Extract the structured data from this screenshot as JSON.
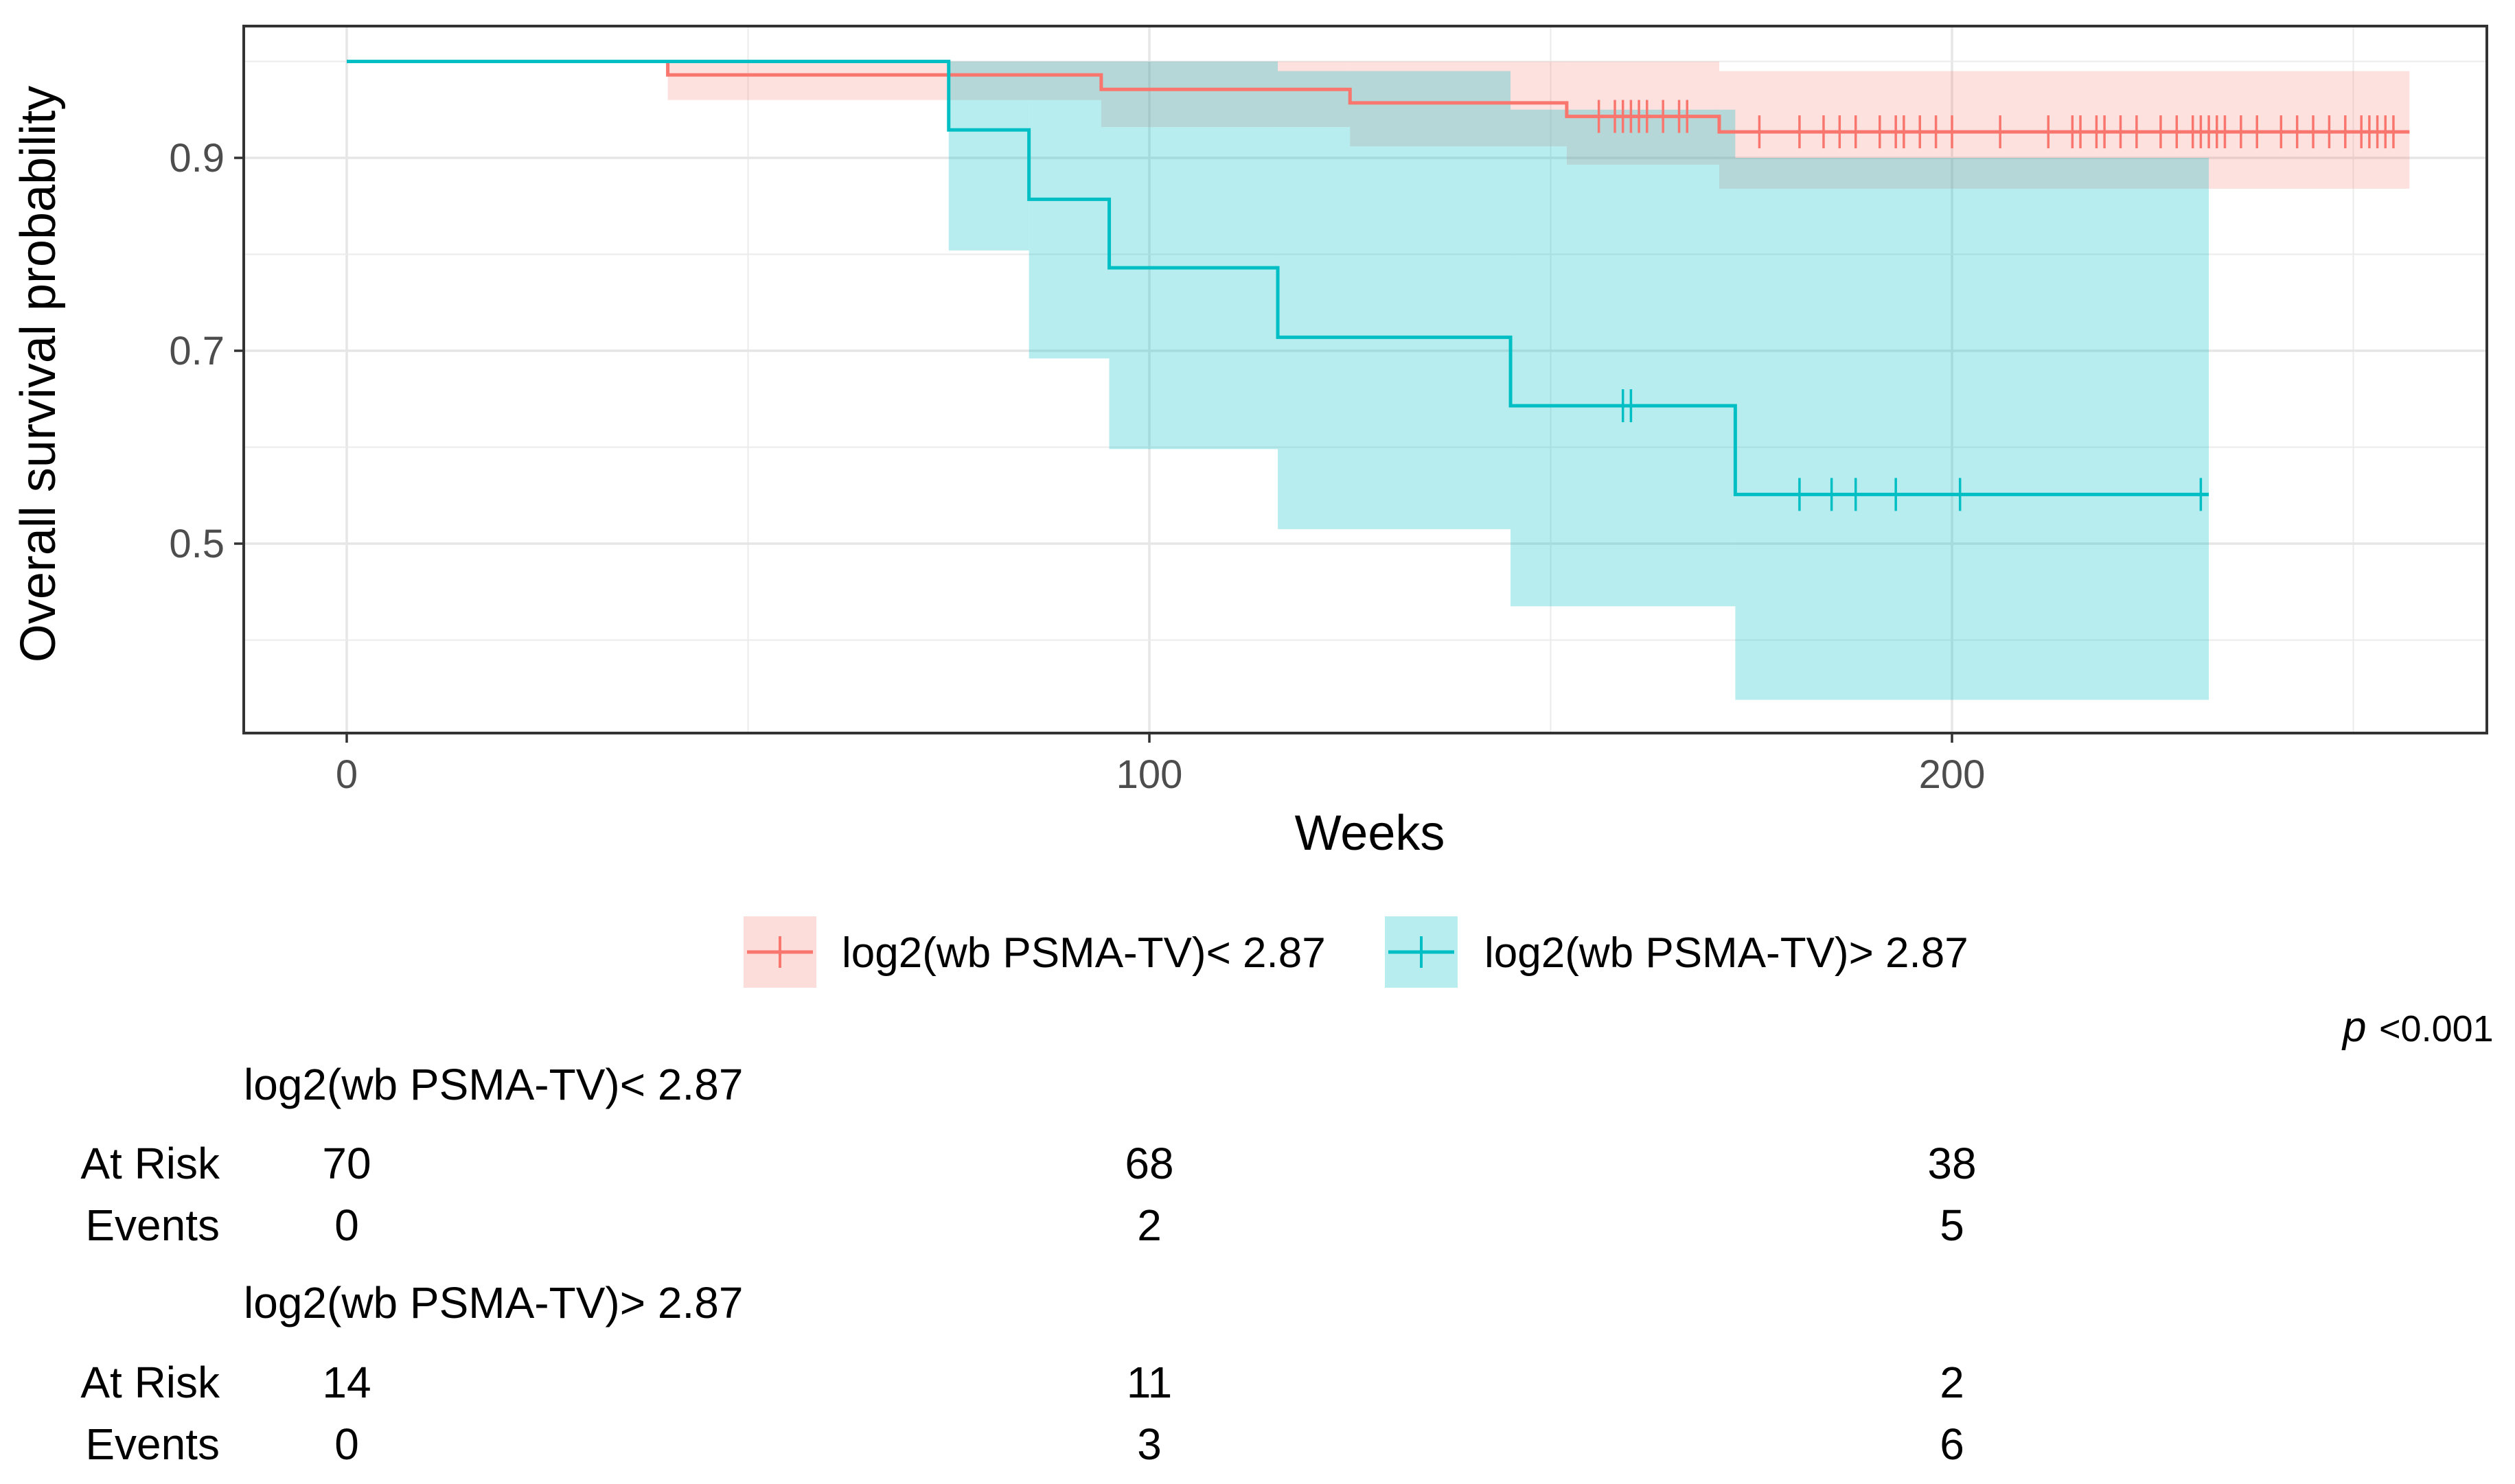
{
  "chart_data": {
    "type": "line",
    "subtype": "kaplan-meier",
    "title": "",
    "xlabel": "Weeks",
    "ylabel": "Overall survival probability",
    "xlim": [
      -13,
      263
    ],
    "ylim": [
      0.31,
      1.035
    ],
    "x_ticks": [
      0,
      100,
      200
    ],
    "x_tick_labels": [
      "0",
      "100",
      "200"
    ],
    "y_ticks": [
      0.5,
      0.7,
      0.9
    ],
    "y_tick_labels": [
      "0.5",
      "0.7",
      "0.9"
    ],
    "grid": true,
    "legend_position": "bottom",
    "series": [
      {
        "name": "log2(wb PSMA-TV)< 2.87",
        "color": "#F8766D",
        "fill": "#F8766D",
        "end_x": 257,
        "steps": [
          {
            "x": 0,
            "y": 1.0,
            "lo": 1.0,
            "hi": 1.0
          },
          {
            "x": 40,
            "y": 0.986,
            "lo": 0.96,
            "hi": 1.0
          },
          {
            "x": 94,
            "y": 0.971,
            "lo": 0.932,
            "hi": 1.0
          },
          {
            "x": 125,
            "y": 0.957,
            "lo": 0.912,
            "hi": 1.0
          },
          {
            "x": 152,
            "y": 0.943,
            "lo": 0.893,
            "hi": 1.0
          },
          {
            "x": 171,
            "y": 0.927,
            "lo": 0.868,
            "hi": 0.99
          }
        ],
        "censor_times": [
          156,
          158,
          159,
          160,
          161,
          162,
          164,
          166,
          167,
          176,
          181,
          184,
          186,
          188,
          191,
          193,
          194,
          196,
          198,
          200,
          206,
          212,
          215,
          216,
          218,
          219,
          221,
          223,
          226,
          228,
          230,
          231,
          232,
          233,
          234,
          236,
          238,
          241,
          243,
          245,
          247,
          249,
          251,
          252,
          253,
          254,
          255
        ]
      },
      {
        "name": "log2(wb PSMA-TV)> 2.87",
        "color": "#00BFC4",
        "fill": "#00BFC4",
        "end_x": 232,
        "steps": [
          {
            "x": 0,
            "y": 1.0,
            "lo": 1.0,
            "hi": 1.0
          },
          {
            "x": 75,
            "y": 0.929,
            "lo": 0.804,
            "hi": 1.0
          },
          {
            "x": 85,
            "y": 0.857,
            "lo": 0.692,
            "hi": 1.0
          },
          {
            "x": 95,
            "y": 0.786,
            "lo": 0.598,
            "hi": 1.0
          },
          {
            "x": 116,
            "y": 0.714,
            "lo": 0.515,
            "hi": 0.99
          },
          {
            "x": 145,
            "y": 0.643,
            "lo": 0.435,
            "hi": 0.95
          },
          {
            "x": 173,
            "y": 0.551,
            "lo": 0.338,
            "hi": 0.9
          }
        ],
        "censor_times": [
          159,
          160,
          181,
          185,
          188,
          193,
          201,
          231
        ]
      }
    ],
    "p_value": {
      "p": "p",
      "value": "<0.001"
    },
    "risk_table": {
      "times": [
        "0",
        "100",
        "200"
      ],
      "time_values": [
        0,
        100,
        200
      ],
      "groups": [
        {
          "name": "log2(wb PSMA-TV)< 2.87",
          "at_risk_label": "At Risk",
          "events_label": "Events",
          "at_risk": [
            "70",
            "68",
            "38"
          ],
          "events": [
            "0",
            "2",
            "5"
          ]
        },
        {
          "name": "log2(wb PSMA-TV)> 2.87",
          "at_risk_label": "At Risk",
          "events_label": "Events",
          "at_risk": [
            "14",
            "11",
            "2"
          ],
          "events": [
            "0",
            "3",
            "6"
          ]
        }
      ]
    }
  }
}
